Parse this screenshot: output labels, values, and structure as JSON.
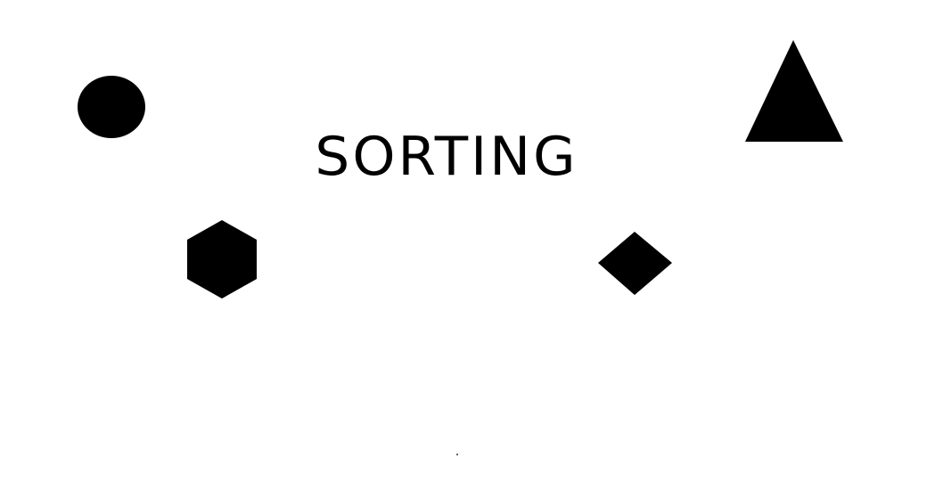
{
  "title": "SORTING",
  "colors": {
    "background": "#ffffff",
    "shape_fill": "#000000",
    "text": "#000000"
  },
  "shapes": [
    {
      "name": "circle-icon",
      "kind": "circle"
    },
    {
      "name": "triangle-icon",
      "kind": "triangle"
    },
    {
      "name": "hexagon-icon",
      "kind": "hexagon"
    },
    {
      "name": "diamond-icon",
      "kind": "diamond"
    }
  ]
}
